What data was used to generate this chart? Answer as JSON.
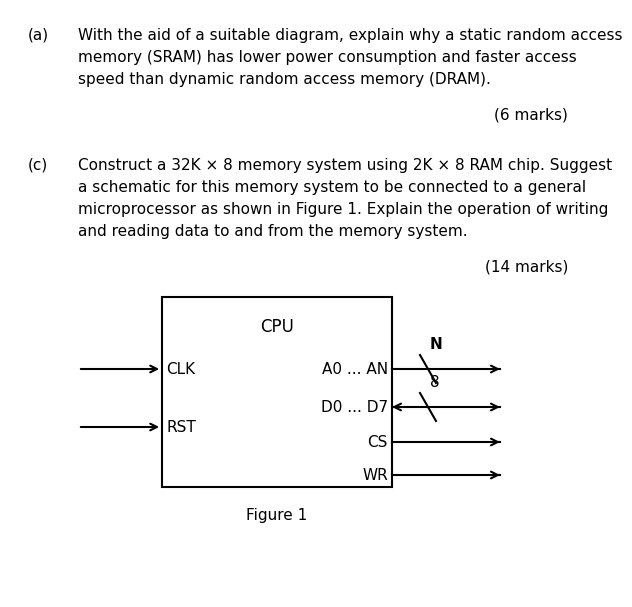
{
  "text_a_label": "(a)",
  "text_a_lines": [
    "With the aid of a suitable diagram, explain why a static random access",
    "memory (SRAM) has lower power consumption and faster access",
    "speed than dynamic random access memory (DRAM)."
  ],
  "text_a_marks": "(6 marks)",
  "text_c_label": "(c)",
  "text_c_lines": [
    "Construct a 32K × 8 memory system using 2K × 8 RAM chip. Suggest",
    "a schematic for this memory system to be connected to a general",
    "microprocessor as shown in Figure 1. Explain the operation of writing",
    "and reading data to and from the memory system."
  ],
  "text_c_marks": "(14 marks)",
  "figure_caption": "Figure 1",
  "cpu_label": "CPU",
  "clk_label": "CLK",
  "rst_label": "RST",
  "a0an_label": "A0 ... AN",
  "d0d7_label": "D0 ... D7",
  "cs_label": "CS",
  "wr_label": "WR",
  "n_label": "N",
  "eight_label": "8",
  "font_size": 11,
  "font_size_cpu": 12
}
